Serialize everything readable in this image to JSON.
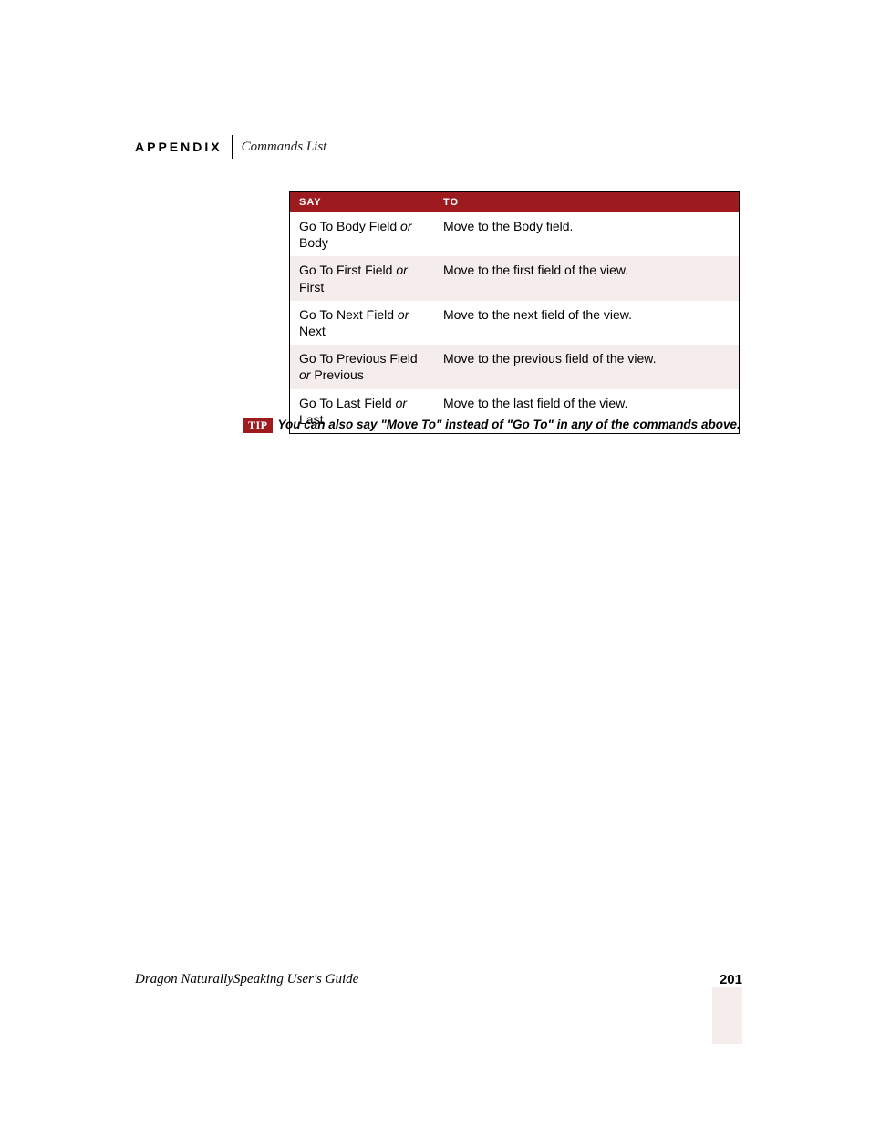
{
  "header": {
    "appendix": "APPENDIX",
    "subtitle": "Commands List"
  },
  "table": {
    "columns": {
      "say": "SAY",
      "to": "TO"
    },
    "rows": [
      {
        "say_a": "Go To Body Field",
        "or": "or",
        "say_b": "Body",
        "to": "Move to the Body field."
      },
      {
        "say_a": "Go To First Field",
        "or": "or",
        "say_b": "First",
        "to": "Move to the first field of the view."
      },
      {
        "say_a": "Go To Next Field",
        "or": "or",
        "say_b": "Next",
        "to": "Move to the next field of the view."
      },
      {
        "say_a": "Go To Previous Field",
        "or": "or",
        "say_b": "Previous",
        "to": "Move to the previous field of the view."
      },
      {
        "say_a": "Go To Last Field",
        "or": "or",
        "say_b": "Last",
        "to": "Move to the last field of the view."
      }
    ]
  },
  "tip": {
    "badge": "TIP",
    "text": "You can also say \"Move To\" instead of \"Go To\" in any of the commands above."
  },
  "footer": {
    "title": "Dragon NaturallySpeaking User's Guide",
    "page": "201"
  },
  "colors": {
    "header_red": "#9d1b1f",
    "alt_row_bg": "#f5edec",
    "text": "#000000"
  }
}
